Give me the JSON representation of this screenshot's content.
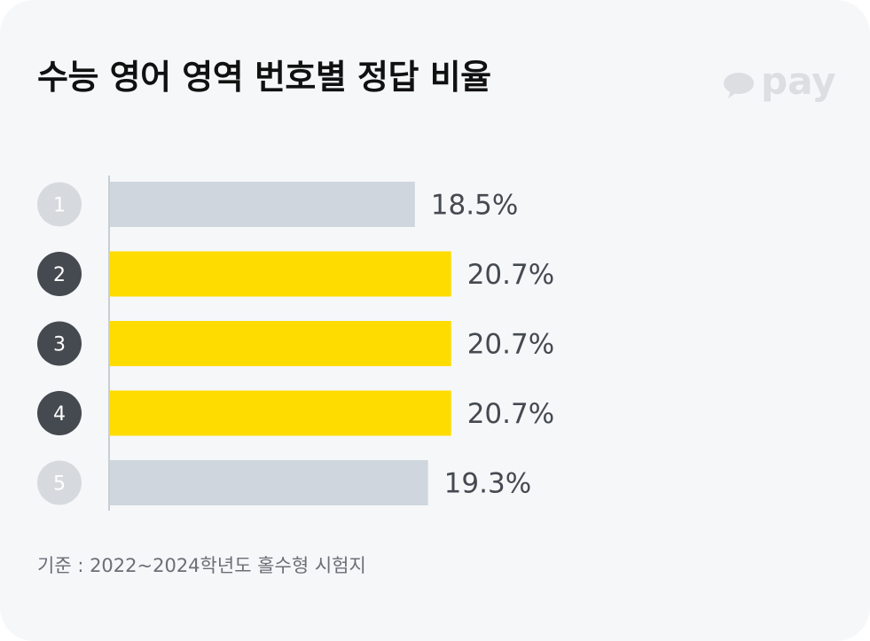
{
  "title": "수능 영어 영역 번호별 정답 비율",
  "logo": {
    "text": "pay",
    "icon": "speech-bubble-icon",
    "color": "#dcdee2"
  },
  "footnote": "기준 : 2022~2024학년도 홀수형 시험지",
  "colors": {
    "highlight": "#ffdc00",
    "muted": "#cfd6dd",
    "badge_dark": "#454a51",
    "badge_light": "#d6dade",
    "value_text": "#454a51"
  },
  "chart_data": {
    "type": "bar",
    "orientation": "horizontal",
    "categories": [
      "1",
      "2",
      "3",
      "4",
      "5"
    ],
    "values": [
      18.5,
      20.7,
      20.7,
      20.7,
      19.3
    ],
    "value_labels": [
      "18.5%",
      "20.7%",
      "20.7%",
      "20.7%",
      "19.3%"
    ],
    "highlighted": [
      false,
      true,
      true,
      true,
      false
    ],
    "unit": "%",
    "xlim": [
      0,
      22.6
    ],
    "grid": false,
    "legend": "none"
  }
}
